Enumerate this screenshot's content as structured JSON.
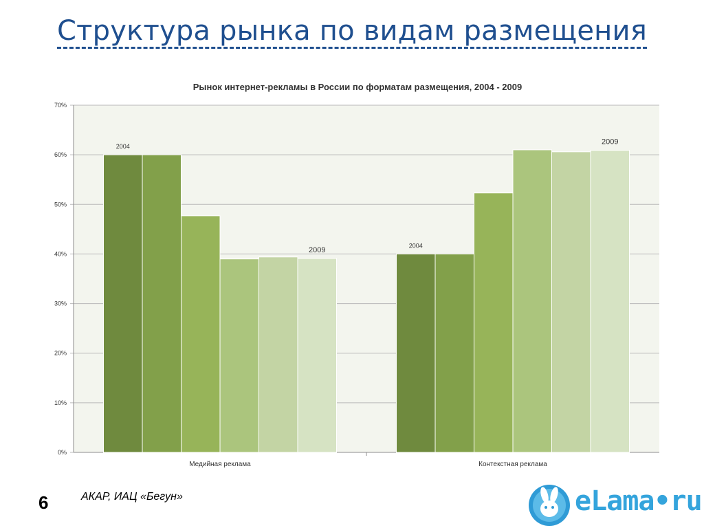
{
  "slide": {
    "title": "Структура рынка по видам размещения",
    "page_number": "6",
    "source": "АКАР, ИАЦ «Бегун»",
    "logo_text": "eLama•ru"
  },
  "colors": {
    "title": "#1f4f8f",
    "plot_bg": "#f3f5ee",
    "series": [
      "#6f8a3e",
      "#82a04a",
      "#97b459",
      "#abc57d",
      "#c3d4a4",
      "#d6e3c3"
    ],
    "logo": "#34a4dc"
  },
  "chart_data": {
    "type": "bar",
    "title": "Рынок интернет-рекламы в России по форматам размещения, 2004 - 2009",
    "categories": [
      "Медийная реклама",
      "Контекстная реклама"
    ],
    "series": [
      {
        "values": [
          60,
          40
        ]
      },
      {
        "values": [
          60,
          40
        ]
      },
      {
        "values": [
          47.7,
          52.3
        ]
      },
      {
        "values": [
          39.0,
          61.0
        ]
      },
      {
        "values": [
          39.4,
          60.6
        ]
      },
      {
        "values": [
          39.1,
          60.9
        ]
      }
    ],
    "bar_labels": {
      "first": "2004",
      "last": "2009"
    },
    "ylim": [
      0,
      70
    ],
    "yticks": [
      0,
      10,
      20,
      30,
      40,
      50,
      60,
      70
    ],
    "ytick_labels": [
      "0%",
      "10%",
      "20%",
      "30%",
      "40%",
      "50%",
      "60%",
      "70%"
    ],
    "grid": true,
    "legend": "none"
  }
}
